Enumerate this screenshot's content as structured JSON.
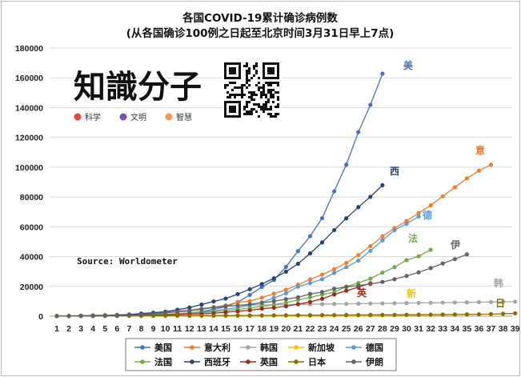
{
  "logo": {
    "text": "知識分子",
    "tags": [
      {
        "label": "科学",
        "color": "#e8473d"
      },
      {
        "label": "文明",
        "color": "#7b4fb8"
      },
      {
        "label": "智慧",
        "color": "#f39b4a"
      }
    ]
  },
  "chart_data": {
    "type": "line",
    "title": "各国COVID-19累计确诊病例数",
    "subtitle": "(从各国确诊100例之日起至北京时间3月31日早上7点)",
    "source": "Source: Worldometer",
    "xlabel": "",
    "ylabel": "",
    "ylim": [
      0,
      180000
    ],
    "y_ticks": [
      0,
      20000,
      40000,
      60000,
      80000,
      100000,
      120000,
      140000,
      160000,
      180000
    ],
    "x_ticks": [
      1,
      2,
      3,
      4,
      5,
      6,
      7,
      8,
      9,
      10,
      11,
      12,
      13,
      14,
      15,
      16,
      17,
      18,
      19,
      20,
      21,
      22,
      23,
      24,
      25,
      26,
      27,
      28,
      29,
      30,
      31,
      32,
      33,
      34,
      35,
      36,
      37,
      38,
      39
    ],
    "grid": "horizontal",
    "legend_position": "bottom",
    "series": [
      {
        "name": "美国",
        "label": "美",
        "color": "#4472c4",
        "values": [
          100,
          120,
          160,
          220,
          300,
          430,
          540,
          700,
          950,
          1300,
          1700,
          2200,
          3000,
          4600,
          6400,
          9400,
          14300,
          19600,
          24300,
          33100,
          43700,
          53700,
          65800,
          83800,
          101700,
          123600,
          141800,
          162800
        ]
      },
      {
        "name": "意大利",
        "label": "意",
        "color": "#ed7d31",
        "values": [
          100,
          200,
          300,
          450,
          600,
          820,
          1050,
          1580,
          2000,
          2500,
          3100,
          3860,
          4600,
          6000,
          7300,
          9200,
          10100,
          12400,
          15100,
          17700,
          21100,
          24700,
          27900,
          31500,
          35700,
          41000,
          47000,
          53600,
          59100,
          63900,
          69200,
          74400,
          80500,
          86500,
          92500,
          97700,
          101700
        ]
      },
      {
        "name": "韩国",
        "label": "韩",
        "color": "#a5a5a5",
        "values": [
          100,
          200,
          350,
          600,
          760,
          900,
          1250,
          1760,
          2300,
          2900,
          3500,
          4300,
          5200,
          6100,
          6800,
          7100,
          7300,
          7500,
          7600,
          7800,
          7900,
          8000,
          8100,
          8200,
          8300,
          8400,
          8500,
          8600,
          8700,
          8800,
          8900,
          9000,
          9100,
          9200,
          9300,
          9400,
          9500,
          9600,
          9700
        ]
      },
      {
        "name": "新加坡",
        "label": "新",
        "color": "#ffc000",
        "values": [
          100,
          110,
          120,
          130,
          140,
          150,
          160,
          170,
          180,
          190,
          200,
          210,
          220,
          230,
          240,
          260,
          280,
          300,
          320,
          340,
          360,
          380,
          400,
          420,
          450,
          480,
          510,
          550,
          580,
          620,
          680,
          730,
          800,
          880
        ]
      },
      {
        "name": "德国",
        "label": "德",
        "color": "#5b9bd5",
        "values": [
          100,
          130,
          160,
          200,
          260,
          400,
          530,
          800,
          1100,
          1300,
          1600,
          2000,
          2700,
          3600,
          4600,
          5800,
          7200,
          9200,
          12300,
          15300,
          19800,
          22200,
          24800,
          29000,
          32900,
          37300,
          43900,
          50900,
          57700,
          62000,
          66900
        ]
      },
      {
        "name": "法国",
        "label": "法",
        "color": "#70ad47",
        "values": [
          100,
          130,
          190,
          210,
          280,
          380,
          610,
          720,
          1000,
          1200,
          1400,
          1800,
          2300,
          2900,
          3700,
          4500,
          5400,
          6600,
          7700,
          9100,
          10900,
          12600,
          14500,
          16000,
          19900,
          22300,
          25200,
          29200,
          32900,
          37600,
          40200,
          44600
        ]
      },
      {
        "name": "西班牙",
        "label": "西",
        "color": "#264478",
        "values": [
          100,
          150,
          220,
          360,
          500,
          680,
          1000,
          1700,
          2300,
          3000,
          4300,
          5800,
          7800,
          9900,
          11800,
          14800,
          18100,
          21600,
          25400,
          29900,
          35200,
          42100,
          49500,
          57800,
          65700,
          73200,
          80100,
          87900
        ]
      },
      {
        "name": "英国",
        "label": "英",
        "color": "#9e2a14",
        "values": [
          100,
          120,
          160,
          210,
          270,
          320,
          380,
          460,
          590,
          800,
          1140,
          1390,
          1540,
          1950,
          2630,
          3270,
          3980,
          5000,
          5680,
          6650,
          8080,
          9530,
          11660,
          14540,
          17090,
          19520,
          22140
        ]
      },
      {
        "name": "日本",
        "label": "日",
        "color": "#8a6d00",
        "values": [
          100,
          120,
          140,
          160,
          180,
          210,
          230,
          250,
          270,
          290,
          310,
          330,
          350,
          380,
          410,
          440,
          480,
          520,
          560,
          600,
          640,
          680,
          720,
          760,
          800,
          840,
          880,
          900,
          920,
          960,
          1000,
          1050,
          1100,
          1150,
          1200,
          1300,
          1400,
          1600,
          1900
        ]
      },
      {
        "name": "伊朗",
        "label": "伊",
        "color": "#636363",
        "values": [
          100,
          140,
          200,
          250,
          300,
          390,
          590,
          980,
          1500,
          2300,
          2900,
          3500,
          4700,
          5800,
          6600,
          7200,
          8000,
          9000,
          10000,
          11400,
          12700,
          14900,
          16200,
          18400,
          19600,
          20600,
          21600,
          23000,
          24800,
          27000,
          29400,
          32300,
          35400,
          38300,
          41500
        ]
      }
    ]
  }
}
